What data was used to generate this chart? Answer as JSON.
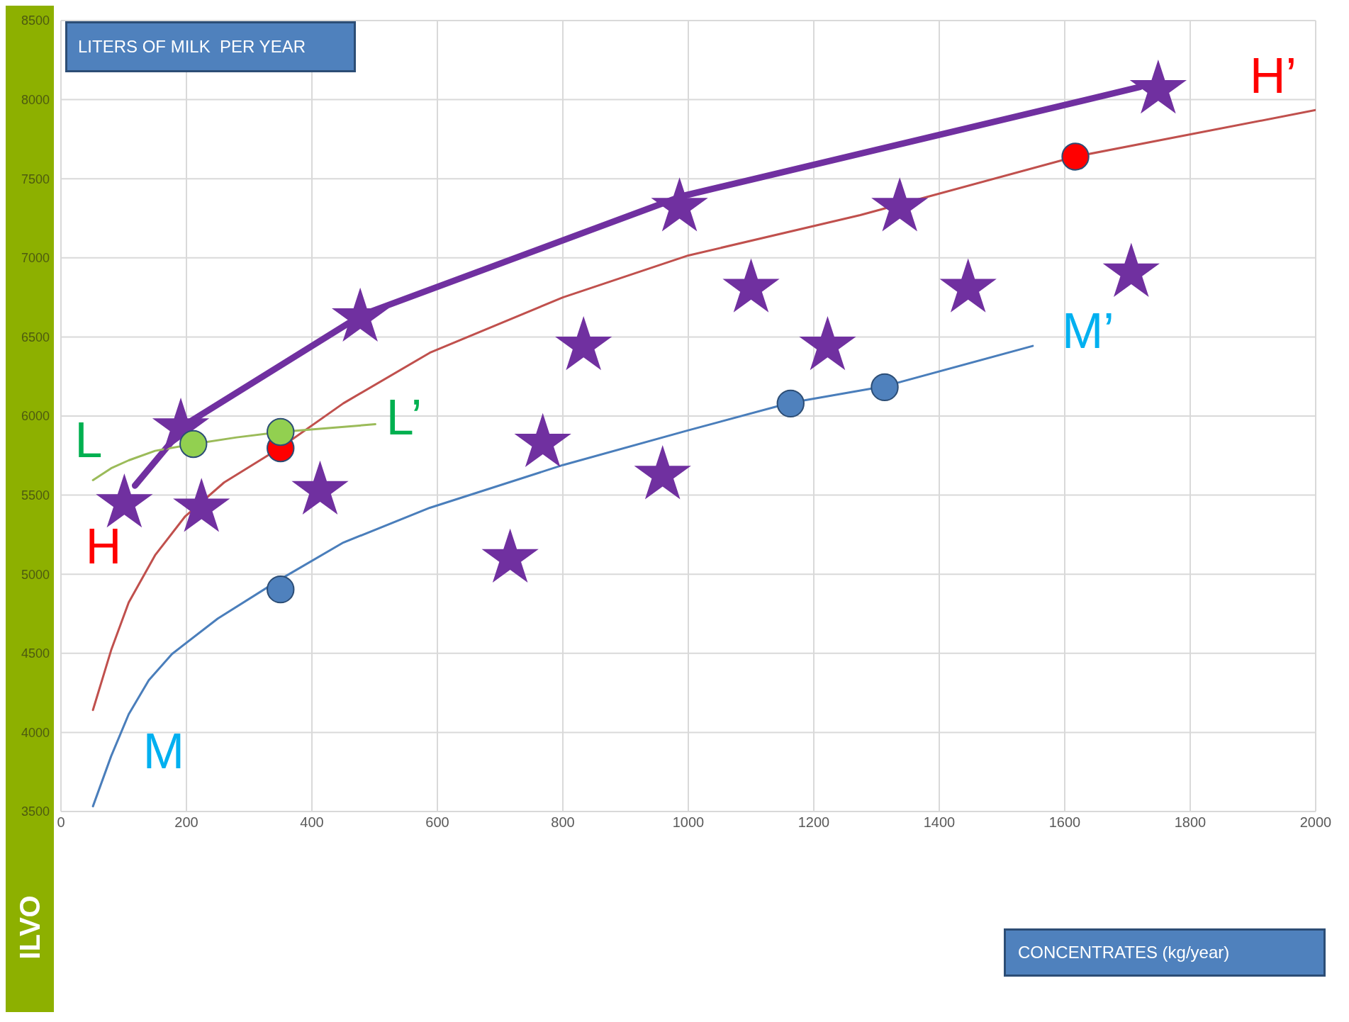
{
  "chart_data": {
    "type": "scatter",
    "ylabel": "LITERS OF MILK  PER YEAR",
    "xlim": [
      0,
      2000
    ],
    "xticks": [
      0,
      200,
      400,
      600,
      800,
      1000,
      1200,
      1400,
      1600,
      1800,
      2000
    ],
    "ylim": [
      3500,
      8500
    ],
    "yticks": [
      3500,
      4000,
      4500,
      5000,
      5500,
      6000,
      6500,
      7000,
      7500,
      8000,
      8500
    ],
    "grid": true,
    "series": [
      {
        "marker": "star",
        "color": "#7030a0",
        "x": [
          101,
          191,
          224,
          413,
          477,
          716,
          768,
          833,
          959,
          986,
          1100,
          1222,
          1337,
          1446,
          1706,
          1749
        ],
        "values": [
          5448,
          5927,
          5420,
          5530,
          6623,
          5100,
          5830,
          6443,
          5627,
          7320,
          6808,
          6443,
          7320,
          6808,
          6906,
          8065
        ]
      },
      {
        "type": "line",
        "marker": "none",
        "color": "#7030a0",
        "x": [
          118,
          200,
          480,
          990,
          1720
        ],
        "values": [
          5560,
          5950,
          6640,
          7390,
          8080
        ]
      },
      {
        "type": "line",
        "marker": "none",
        "color": "#c0504d",
        "x": [
          51,
          80,
          108,
          150,
          198,
          260,
          350,
          450,
          588,
          800,
          1000,
          1274,
          1617,
          2000
        ],
        "values": [
          4142,
          4520,
          4822,
          5120,
          5366,
          5580,
          5801,
          6080,
          6400,
          6750,
          7015,
          7270,
          7640,
          7934
        ]
      },
      {
        "type": "line",
        "marker": "none",
        "color": "#4a7ebb",
        "x": [
          51,
          80,
          108,
          140,
          177,
          250,
          350,
          450,
          588,
          800,
          1000,
          1163,
          1313,
          1549
        ],
        "values": [
          3533,
          3850,
          4115,
          4330,
          4496,
          4720,
          4969,
          5200,
          5420,
          5690,
          5910,
          6084,
          6188,
          6443
        ]
      },
      {
        "type": "line",
        "marker": "none",
        "color": "#9bbb59",
        "x": [
          51,
          80,
          108,
          150,
          211,
          280,
          350,
          430,
          501
        ],
        "values": [
          5595,
          5670,
          5720,
          5780,
          5823,
          5865,
          5899,
          5925,
          5948
        ]
      },
      {
        "marker": "circle",
        "color": "#ff0000",
        "x": [
          350,
          1617
        ],
        "values": [
          5796,
          7640
        ]
      },
      {
        "marker": "circle",
        "color": "#4f81bd",
        "x": [
          350,
          1163,
          1313
        ],
        "values": [
          4904,
          6079,
          6182
        ]
      },
      {
        "marker": "circle",
        "color": "#92d050",
        "x": [
          211,
          350
        ],
        "values": [
          5823,
          5899
        ]
      }
    ],
    "annotations": [
      "ILVO",
      "CONCENTRATES (kg/year)",
      "L",
      "L’",
      "H",
      "H’",
      "M",
      "M’"
    ]
  }
}
